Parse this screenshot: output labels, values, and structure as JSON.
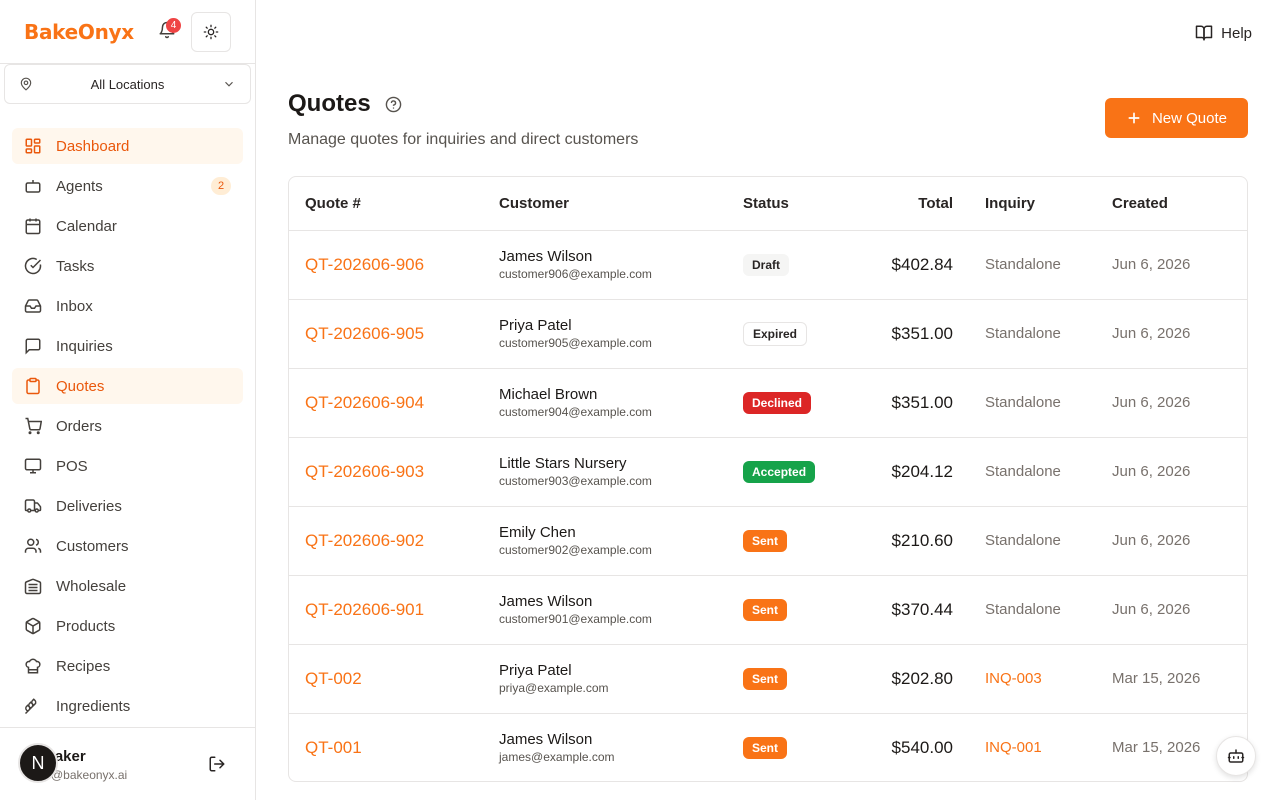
{
  "brand": {
    "name": "BakeOnyx",
    "notification_count": "4"
  },
  "location": {
    "selected": "All Locations"
  },
  "sidebar": {
    "items": [
      {
        "label": "Dashboard",
        "icon": "dashboard-icon",
        "active": true
      },
      {
        "label": "Agents",
        "icon": "bot-icon",
        "badge": "2"
      },
      {
        "label": "Calendar",
        "icon": "calendar-icon"
      },
      {
        "label": "Tasks",
        "icon": "check-circle-icon"
      },
      {
        "label": "Inbox",
        "icon": "inbox-icon"
      },
      {
        "label": "Inquiries",
        "icon": "message-icon"
      },
      {
        "label": "Quotes",
        "icon": "clipboard-icon",
        "active": true
      },
      {
        "label": "Orders",
        "icon": "cart-icon"
      },
      {
        "label": "POS",
        "icon": "monitor-icon"
      },
      {
        "label": "Deliveries",
        "icon": "truck-icon"
      },
      {
        "label": "Customers",
        "icon": "users-icon"
      },
      {
        "label": "Wholesale",
        "icon": "warehouse-icon"
      },
      {
        "label": "Products",
        "icon": "package-icon"
      },
      {
        "label": "Recipes",
        "icon": "chef-hat-icon"
      },
      {
        "label": "Ingredients",
        "icon": "wheat-icon"
      }
    ]
  },
  "user": {
    "name": "Baker",
    "email": "@bakeonyx.ai",
    "avatar_initial": "N"
  },
  "header": {
    "help_label": "Help"
  },
  "page": {
    "title": "Quotes",
    "subtitle": "Manage quotes for inquiries and direct customers",
    "new_quote_label": "New Quote"
  },
  "table": {
    "columns": [
      "Quote #",
      "Customer",
      "Status",
      "Total",
      "Inquiry",
      "Created"
    ],
    "rows": [
      {
        "quote": "QT-202606-906",
        "name": "James Wilson",
        "email": "customer906@example.com",
        "status": "Draft",
        "status_kind": "draft",
        "total": "$402.84",
        "inquiry": "Standalone",
        "inquiry_link": false,
        "created": "Jun 6, 2026"
      },
      {
        "quote": "QT-202606-905",
        "name": "Priya Patel",
        "email": "customer905@example.com",
        "status": "Expired",
        "status_kind": "expired",
        "total": "$351.00",
        "inquiry": "Standalone",
        "inquiry_link": false,
        "created": "Jun 6, 2026"
      },
      {
        "quote": "QT-202606-904",
        "name": "Michael Brown",
        "email": "customer904@example.com",
        "status": "Declined",
        "status_kind": "declined",
        "total": "$351.00",
        "inquiry": "Standalone",
        "inquiry_link": false,
        "created": "Jun 6, 2026"
      },
      {
        "quote": "QT-202606-903",
        "name": "Little Stars Nursery",
        "email": "customer903@example.com",
        "status": "Accepted",
        "status_kind": "accepted",
        "total": "$204.12",
        "inquiry": "Standalone",
        "inquiry_link": false,
        "created": "Jun 6, 2026"
      },
      {
        "quote": "QT-202606-902",
        "name": "Emily Chen",
        "email": "customer902@example.com",
        "status": "Sent",
        "status_kind": "sent",
        "total": "$210.60",
        "inquiry": "Standalone",
        "inquiry_link": false,
        "created": "Jun 6, 2026"
      },
      {
        "quote": "QT-202606-901",
        "name": "James Wilson",
        "email": "customer901@example.com",
        "status": "Sent",
        "status_kind": "sent",
        "total": "$370.44",
        "inquiry": "Standalone",
        "inquiry_link": false,
        "created": "Jun 6, 2026"
      },
      {
        "quote": "QT-002",
        "name": "Priya Patel",
        "email": "priya@example.com",
        "status": "Sent",
        "status_kind": "sent",
        "total": "$202.80",
        "inquiry": "INQ-003",
        "inquiry_link": true,
        "created": "Mar 15, 2026"
      },
      {
        "quote": "QT-001",
        "name": "James Wilson",
        "email": "james@example.com",
        "status": "Sent",
        "status_kind": "sent",
        "total": "$540.00",
        "inquiry": "INQ-001",
        "inquiry_link": true,
        "created": "Mar 15, 2026"
      }
    ]
  },
  "colors": {
    "accent": "#f97316",
    "declined": "#dc2626",
    "accepted": "#16a34a"
  }
}
